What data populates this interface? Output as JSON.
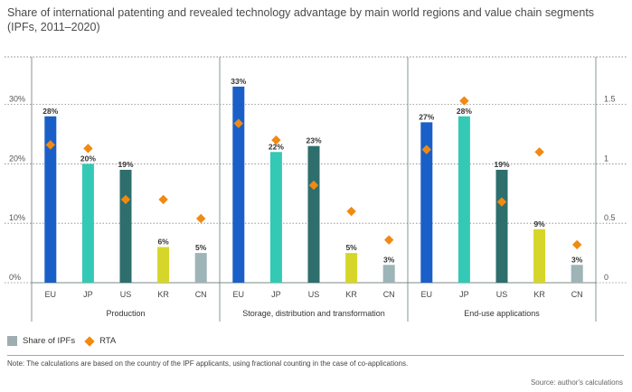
{
  "title": "Share of international patenting and revealed technology advantage by main world regions and value chain segments",
  "subtitle": "(IPFs, 2011–2020)",
  "legend": {
    "share_label": "Share of IPFs",
    "rta_label": "RTA"
  },
  "note": "Note: The calculations are based on the country of the IPF applicants, using fractional counting in the case of co-applications.",
  "source": "Source: author's calculations",
  "colors": {
    "EU": "#1a5fc8",
    "JP": "#34c9b5",
    "US": "#2e6e6c",
    "KR": "#d6d62a",
    "CN": "#9eb4b6",
    "rta": "#f08a12"
  },
  "chart_data": {
    "type": "bar",
    "left_axis": {
      "ticks": [
        "0%",
        "10%",
        "20%",
        "30%"
      ],
      "values": [
        0,
        10,
        20,
        30
      ],
      "ylim": [
        0,
        38
      ]
    },
    "right_axis": {
      "ticks": [
        "0",
        "0.5",
        "1",
        "1.5"
      ],
      "values": [
        0,
        0.5,
        1,
        1.5
      ],
      "ylim": [
        0,
        1.9
      ]
    },
    "groups": [
      {
        "name": "Production",
        "categories": [
          "EU",
          "JP",
          "US",
          "KR",
          "CN"
        ],
        "share_values": [
          28,
          20,
          19,
          6,
          5
        ],
        "share_labels": [
          "28%",
          "20%",
          "19%",
          "6%",
          "5%"
        ],
        "rta_values": [
          1.16,
          1.13,
          0.7,
          0.7,
          0.54
        ]
      },
      {
        "name": "Storage, distribution and transformation",
        "categories": [
          "EU",
          "JP",
          "US",
          "KR",
          "CN"
        ],
        "share_values": [
          33,
          22,
          23,
          5,
          3
        ],
        "share_labels": [
          "33%",
          "22%",
          "23%",
          "5%",
          "3%"
        ],
        "rta_values": [
          1.34,
          1.2,
          0.82,
          0.6,
          0.36
        ]
      },
      {
        "name": "End-use applications",
        "categories": [
          "EU",
          "JP",
          "US",
          "KR",
          "CN"
        ],
        "share_values": [
          27,
          28,
          19,
          9,
          3
        ],
        "share_labels": [
          "27%",
          "28%",
          "19%",
          "9%",
          "3%"
        ],
        "rta_values": [
          1.12,
          1.53,
          0.68,
          1.1,
          0.32
        ]
      }
    ],
    "series": [
      {
        "name": "Share of IPFs"
      },
      {
        "name": "RTA"
      }
    ],
    "grid": true,
    "legend_position": "bottom-left"
  }
}
